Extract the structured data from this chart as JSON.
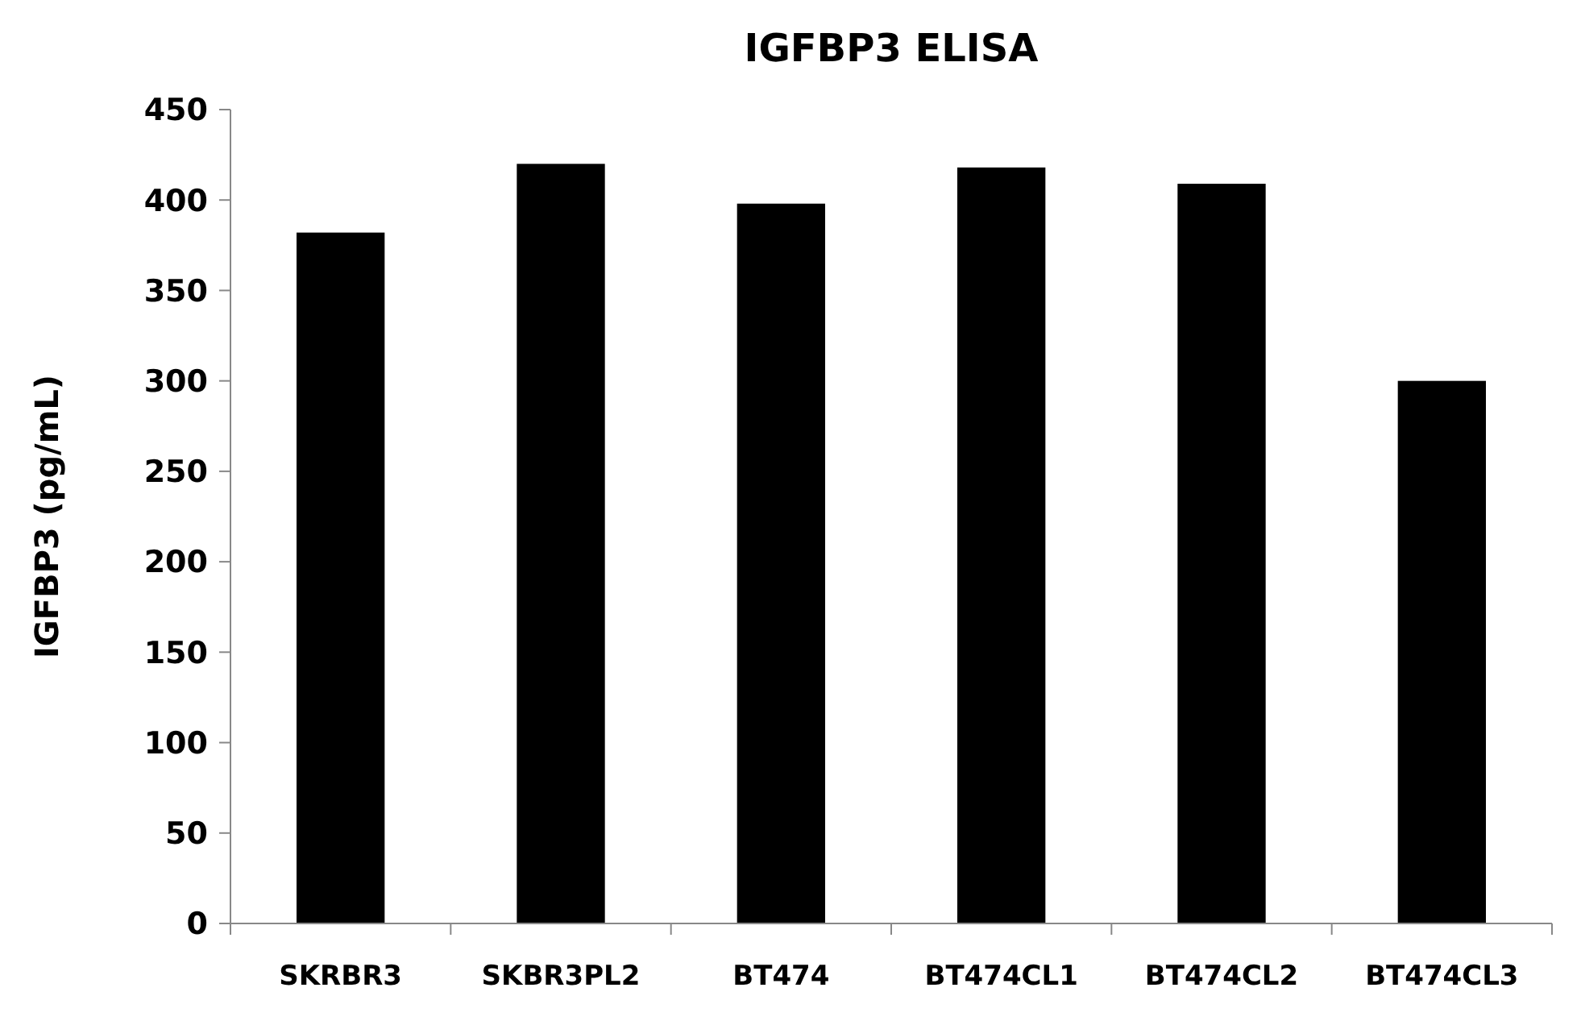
{
  "chart_data": {
    "type": "bar",
    "title": "IGFBP3 ELISA",
    "ylabel": "IGFBP3 (pg/mL)",
    "categories": [
      "SKRBR3",
      "SKBR3PL2",
      "BT474",
      "BT474CL1",
      "BT474CL2",
      "BT474CL3"
    ],
    "values": [
      382,
      420,
      398,
      418,
      409,
      300
    ],
    "color": "#000000",
    "ylim": [
      0,
      450
    ],
    "yticks": [
      0,
      50,
      100,
      150,
      200,
      250,
      300,
      350,
      400,
      450
    ],
    "grid": false
  }
}
